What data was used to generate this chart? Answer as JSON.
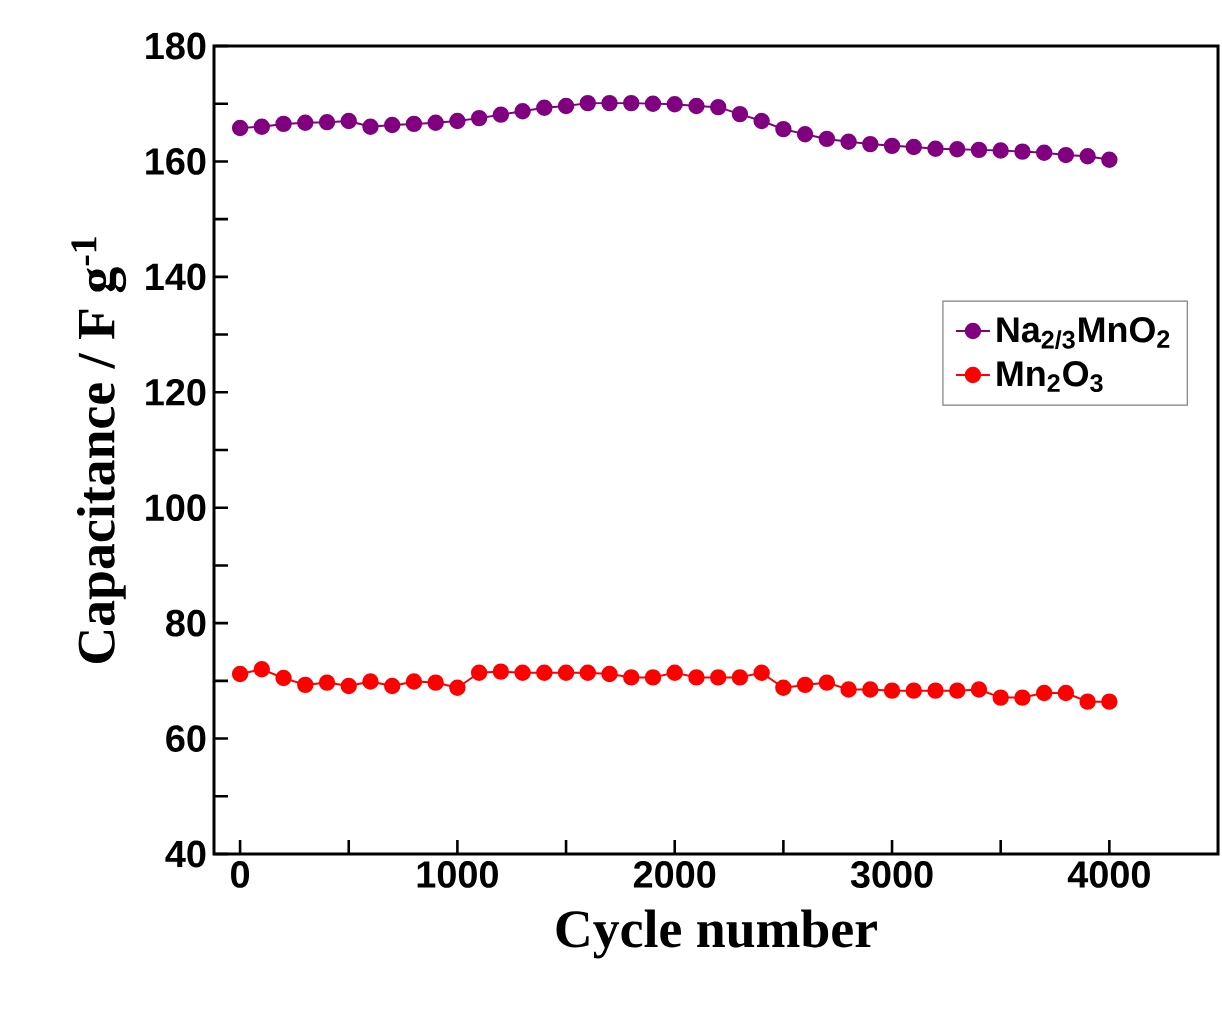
{
  "chart_data": {
    "type": "line",
    "xlabel": "Cycle number",
    "ylabel": "Capacitance / F g$^{-1}$",
    "x": [
      0,
      100,
      200,
      300,
      400,
      500,
      600,
      700,
      800,
      900,
      1000,
      1100,
      1200,
      1300,
      1400,
      1500,
      1600,
      1700,
      1800,
      1900,
      2000,
      2100,
      2200,
      2300,
      2400,
      2500,
      2600,
      2700,
      2800,
      2900,
      3000,
      3100,
      3200,
      3300,
      3400,
      3500,
      3600,
      3700,
      3800,
      3900,
      4000
    ],
    "series": [
      {
        "name": "Na$_{2/3}$MnO$_{2}$",
        "color": "#800080",
        "values": [
          165.8,
          166.0,
          166.5,
          166.7,
          166.8,
          167.0,
          166.0,
          166.3,
          166.5,
          166.7,
          167.0,
          167.5,
          168.1,
          168.7,
          169.3,
          169.6,
          170.1,
          170.1,
          170.1,
          170.0,
          169.9,
          169.6,
          169.4,
          168.2,
          167.0,
          165.6,
          164.7,
          163.9,
          163.4,
          163.0,
          162.7,
          162.5,
          162.2,
          162.1,
          162.0,
          161.9,
          161.7,
          161.5,
          161.1,
          160.9,
          160.3
        ]
      },
      {
        "name": "Mn$_{2}$O$_{3}$",
        "color": "#ff0000",
        "values": [
          71.2,
          72.0,
          70.5,
          69.3,
          69.7,
          69.1,
          69.9,
          69.1,
          69.9,
          69.7,
          68.8,
          71.4,
          71.6,
          71.4,
          71.4,
          71.4,
          71.4,
          71.2,
          70.6,
          70.6,
          71.4,
          70.6,
          70.6,
          70.6,
          71.4,
          68.8,
          69.3,
          69.7,
          68.5,
          68.5,
          68.3,
          68.3,
          68.3,
          68.3,
          68.5,
          67.1,
          67.1,
          67.9,
          67.9,
          66.4,
          66.4
        ]
      }
    ],
    "xlim": [
      -120,
      4500
    ],
    "ylim": [
      40,
      180
    ],
    "xticks": [
      0,
      {
        "value": 500,
        "label": null
      },
      1000,
      {
        "value": 1500,
        "label": null
      },
      2000,
      {
        "value": 2500,
        "label": null
      },
      3000,
      {
        "value": 3500,
        "label": null
      },
      4000
    ],
    "yticks": [
      40,
      {
        "value": 50,
        "label": null
      },
      60,
      {
        "value": 70,
        "label": null
      },
      80,
      {
        "value": 90,
        "label": null
      },
      100,
      {
        "value": 110,
        "label": null
      },
      120,
      {
        "value": 130,
        "label": null
      },
      140,
      {
        "value": 150,
        "label": null
      },
      160,
      {
        "value": 170,
        "label": null
      },
      180
    ],
    "legend": "right",
    "marker": "circle",
    "line_style": "solid",
    "grid": false
  }
}
